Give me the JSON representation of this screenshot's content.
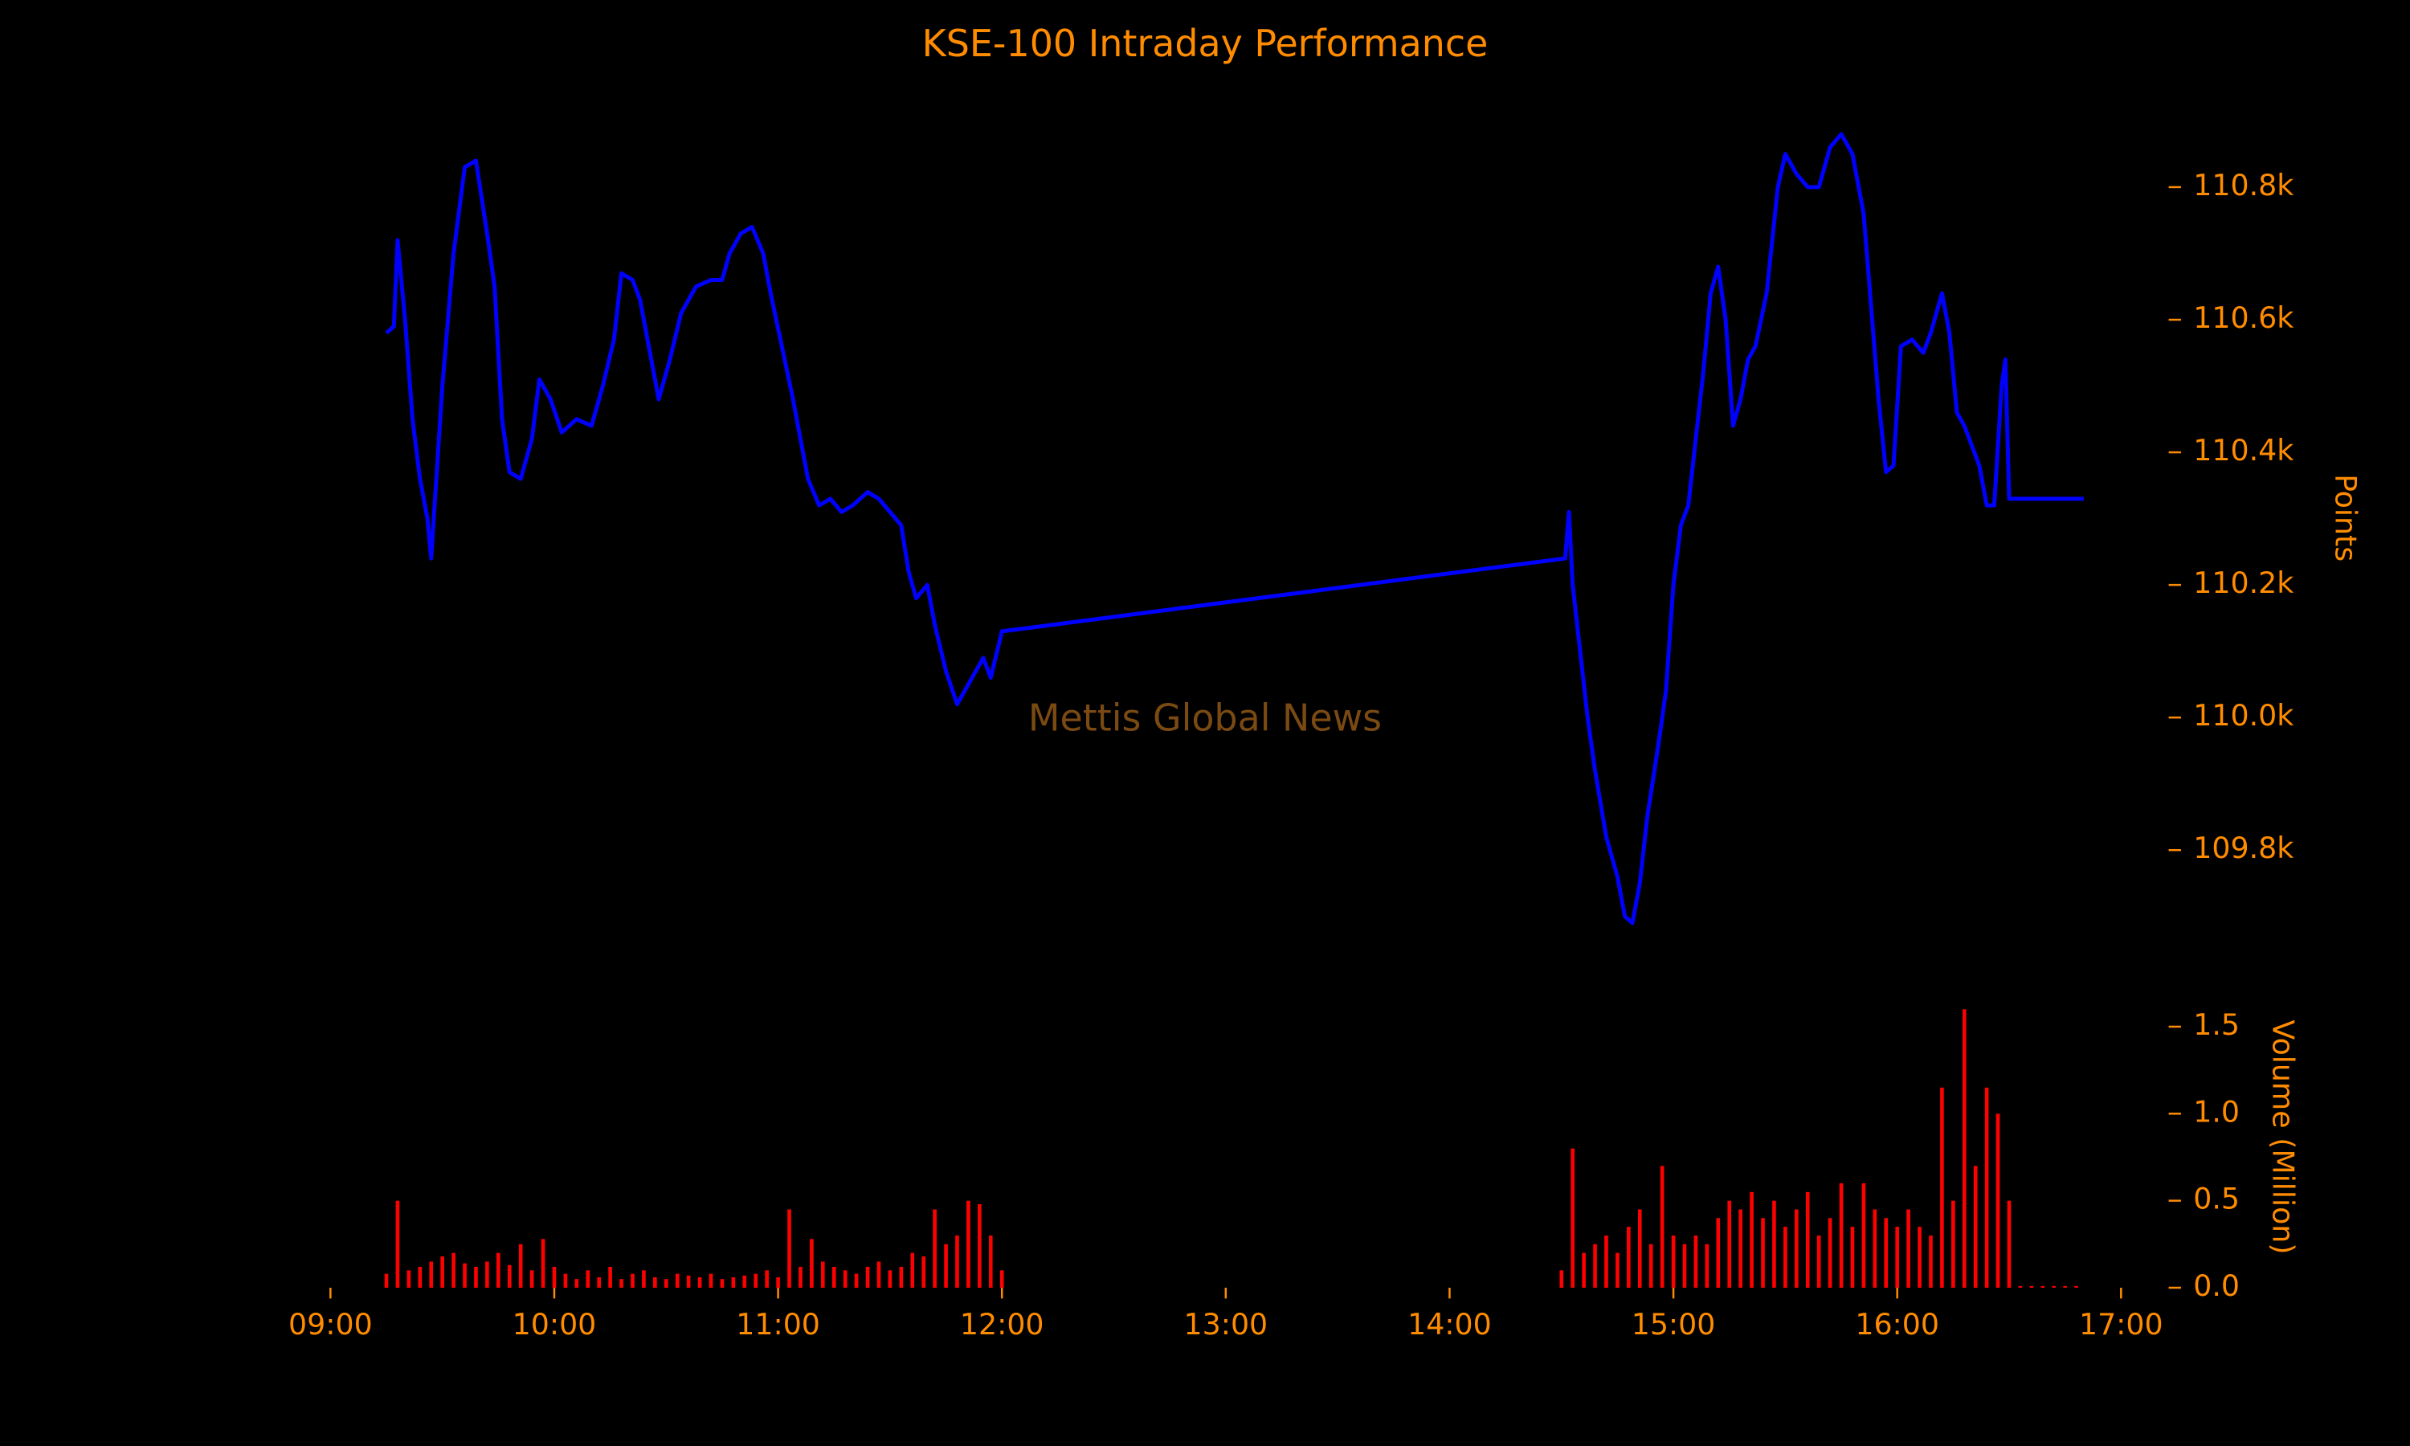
{
  "chart_data": [
    {
      "type": "line",
      "title": "KSE-100 Intraday Performance",
      "ylabel": "Points",
      "annotation": "Mettis Global News",
      "color": "#0000ff",
      "xlim": [
        "09:00",
        "17:00"
      ],
      "ylim": [
        109680,
        110920
      ],
      "yticks": [
        {
          "value": 109800,
          "label": "109.8k"
        },
        {
          "value": 110000,
          "label": "110.0k"
        },
        {
          "value": 110200,
          "label": "110.2k"
        },
        {
          "value": 110400,
          "label": "110.4k"
        },
        {
          "value": 110600,
          "label": "110.6k"
        },
        {
          "value": 110800,
          "label": "110.8k"
        }
      ],
      "x": [
        "09:15",
        "09:17",
        "09:18",
        "09:20",
        "09:22",
        "09:24",
        "09:26",
        "09:27",
        "09:30",
        "09:33",
        "09:36",
        "09:39",
        "09:42",
        "09:44",
        "09:46",
        "09:48",
        "09:51",
        "09:54",
        "09:56",
        "09:59",
        "10:02",
        "10:06",
        "10:10",
        "10:13",
        "10:16",
        "10:18",
        "10:21",
        "10:23",
        "10:26",
        "10:28",
        "10:31",
        "10:34",
        "10:38",
        "10:42",
        "10:45",
        "10:47",
        "10:50",
        "10:53",
        "10:56",
        "10:58",
        "11:01",
        "11:04",
        "11:06",
        "11:08",
        "11:11",
        "11:14",
        "11:17",
        "11:20",
        "11:24",
        "11:27",
        "11:30",
        "11:33",
        "11:35",
        "11:37",
        "11:40",
        "11:42",
        "11:45",
        "11:48",
        "11:50",
        "11:53",
        "11:55",
        "11:57",
        "12:00",
        "14:31",
        "14:32",
        "14:33",
        "14:35",
        "14:37",
        "14:39",
        "14:42",
        "14:45",
        "14:47",
        "14:49",
        "14:51",
        "14:53",
        "14:56",
        "14:58",
        "15:00",
        "15:02",
        "15:04",
        "15:06",
        "15:08",
        "15:10",
        "15:12",
        "15:14",
        "15:16",
        "15:18",
        "15:20",
        "15:22",
        "15:25",
        "15:28",
        "15:30",
        "15:33",
        "15:36",
        "15:39",
        "15:42",
        "15:45",
        "15:48",
        "15:51",
        "15:53",
        "15:55",
        "15:57",
        "15:59",
        "16:01",
        "16:04",
        "16:07",
        "16:09",
        "16:12",
        "16:14",
        "16:16",
        "16:18",
        "16:20",
        "16:22",
        "16:24",
        "16:26",
        "16:28",
        "16:29",
        "16:30",
        "16:50"
      ],
      "values": [
        110580,
        110590,
        110720,
        110600,
        110450,
        110360,
        110300,
        110240,
        110500,
        110700,
        110830,
        110840,
        110730,
        110650,
        110450,
        110370,
        110360,
        110420,
        110510,
        110480,
        110430,
        110450,
        110440,
        110500,
        110570,
        110670,
        110660,
        110630,
        110540,
        110480,
        110540,
        110610,
        110650,
        110660,
        110660,
        110700,
        110730,
        110740,
        110700,
        110640,
        110560,
        110480,
        110420,
        110360,
        110320,
        110330,
        110310,
        110320,
        110340,
        110330,
        110310,
        110290,
        110220,
        110180,
        110200,
        110140,
        110070,
        110020,
        110040,
        110070,
        110090,
        110060,
        110130,
        110240,
        110310,
        110200,
        110100,
        110000,
        109920,
        109820,
        109760,
        109700,
        109690,
        109750,
        109850,
        109960,
        110040,
        110200,
        110290,
        110320,
        110420,
        110520,
        110640,
        110680,
        110600,
        110440,
        110480,
        110540,
        110560,
        110640,
        110800,
        110850,
        110820,
        110800,
        110800,
        110860,
        110880,
        110850,
        110760,
        110620,
        110480,
        110370,
        110380,
        110560,
        110570,
        110550,
        110580,
        110640,
        110580,
        110460,
        110440,
        110410,
        110380,
        110320,
        110320,
        110500,
        110540,
        110330,
        110330
      ]
    },
    {
      "type": "bar",
      "ylabel": "Volume (Million)",
      "color": "#ff0000",
      "xlim": [
        "09:00",
        "17:00"
      ],
      "xticks": [
        "09:00",
        "10:00",
        "11:00",
        "12:00",
        "13:00",
        "14:00",
        "15:00",
        "16:00",
        "17:00"
      ],
      "ylim": [
        0,
        1.66
      ],
      "yticks": [
        {
          "value": 0,
          "label": "0.0"
        },
        0.5,
        {
          "value": 1,
          "label": "1.0"
        },
        1.5
      ],
      "x": [
        "09:15",
        "09:18",
        "09:21",
        "09:24",
        "09:27",
        "09:30",
        "09:33",
        "09:36",
        "09:39",
        "09:42",
        "09:45",
        "09:48",
        "09:51",
        "09:54",
        "09:57",
        "10:00",
        "10:03",
        "10:06",
        "10:09",
        "10:12",
        "10:15",
        "10:18",
        "10:21",
        "10:24",
        "10:27",
        "10:30",
        "10:33",
        "10:36",
        "10:39",
        "10:42",
        "10:45",
        "10:48",
        "10:51",
        "10:54",
        "10:57",
        "11:00",
        "11:03",
        "11:06",
        "11:09",
        "11:12",
        "11:15",
        "11:18",
        "11:21",
        "11:24",
        "11:27",
        "11:30",
        "11:33",
        "11:36",
        "11:39",
        "11:42",
        "11:45",
        "11:48",
        "11:51",
        "11:54",
        "11:57",
        "12:00",
        "14:30",
        "14:33",
        "14:36",
        "14:39",
        "14:42",
        "14:45",
        "14:48",
        "14:51",
        "14:54",
        "14:57",
        "15:00",
        "15:03",
        "15:06",
        "15:09",
        "15:12",
        "15:15",
        "15:18",
        "15:21",
        "15:24",
        "15:27",
        "15:30",
        "15:33",
        "15:36",
        "15:39",
        "15:42",
        "15:45",
        "15:48",
        "15:51",
        "15:54",
        "15:57",
        "16:00",
        "16:03",
        "16:06",
        "16:09",
        "16:12",
        "16:15",
        "16:18",
        "16:21",
        "16:24",
        "16:27",
        "16:30",
        "16:33",
        "16:36",
        "16:39",
        "16:42",
        "16:45",
        "16:48"
      ],
      "values": [
        0.08,
        0.5,
        0.1,
        0.12,
        0.15,
        0.18,
        0.2,
        0.14,
        0.12,
        0.15,
        0.2,
        0.13,
        0.25,
        0.1,
        0.28,
        0.12,
        0.08,
        0.05,
        0.1,
        0.06,
        0.12,
        0.05,
        0.08,
        0.1,
        0.06,
        0.05,
        0.08,
        0.07,
        0.06,
        0.08,
        0.05,
        0.06,
        0.07,
        0.08,
        0.1,
        0.06,
        0.45,
        0.12,
        0.28,
        0.15,
        0.12,
        0.1,
        0.08,
        0.12,
        0.15,
        0.1,
        0.12,
        0.2,
        0.18,
        0.45,
        0.25,
        0.3,
        0.5,
        0.48,
        0.3,
        0.1,
        0.1,
        0.8,
        0.2,
        0.25,
        0.3,
        0.2,
        0.35,
        0.45,
        0.25,
        0.7,
        0.3,
        0.25,
        0.3,
        0.25,
        0.4,
        0.5,
        0.45,
        0.55,
        0.4,
        0.5,
        0.35,
        0.45,
        0.55,
        0.3,
        0.4,
        0.6,
        0.35,
        0.6,
        0.45,
        0.4,
        0.35,
        0.45,
        0.35,
        0.3,
        1.15,
        0.5,
        1.6,
        0.7,
        1.15,
        1.0,
        0.5,
        0.01,
        0.01,
        0.01,
        0.01,
        0.01,
        0.01
      ]
    }
  ]
}
